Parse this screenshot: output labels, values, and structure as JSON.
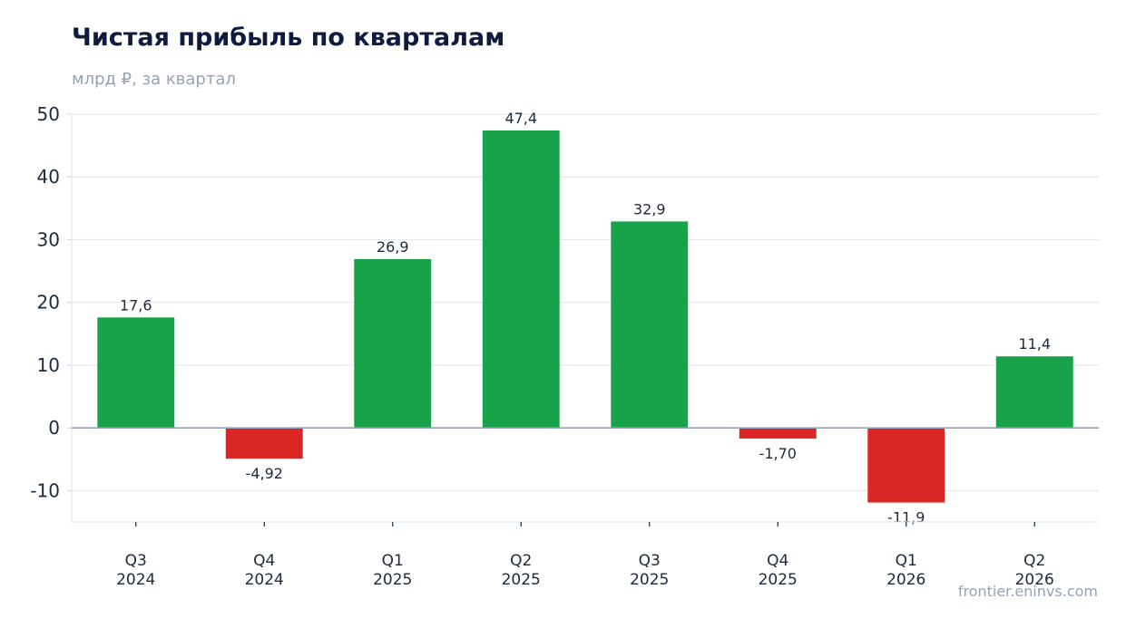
{
  "chart_data": {
    "type": "bar",
    "title": "Чистая прибыль по кварталам",
    "subtitle": "млрд ₽, за квартал",
    "categories": [
      [
        "Q3",
        "2024"
      ],
      [
        "Q4",
        "2024"
      ],
      [
        "Q1",
        "2025"
      ],
      [
        "Q2",
        "2025"
      ],
      [
        "Q3",
        "2025"
      ],
      [
        "Q4",
        "2025"
      ],
      [
        "Q1",
        "2026"
      ],
      [
        "Q2",
        "2026"
      ]
    ],
    "values": [
      17.6,
      -4.92,
      26.9,
      47.4,
      32.9,
      -1.7,
      -11.9,
      11.4
    ],
    "value_labels": [
      "17,6",
      "-4,92",
      "26,9",
      "47,4",
      "32,9",
      "-1,70",
      "-11,9",
      "11,4"
    ],
    "yticks": [
      50,
      40,
      30,
      20,
      10,
      0,
      -10
    ],
    "ylim": [
      -15,
      50
    ],
    "grid": true,
    "colors": {
      "positive": "#18a34a",
      "negative": "#dc2626",
      "grid": "#e2e8f0",
      "zero_line": "#94a3b8"
    }
  },
  "watermark": "frontier.eninvs.com"
}
